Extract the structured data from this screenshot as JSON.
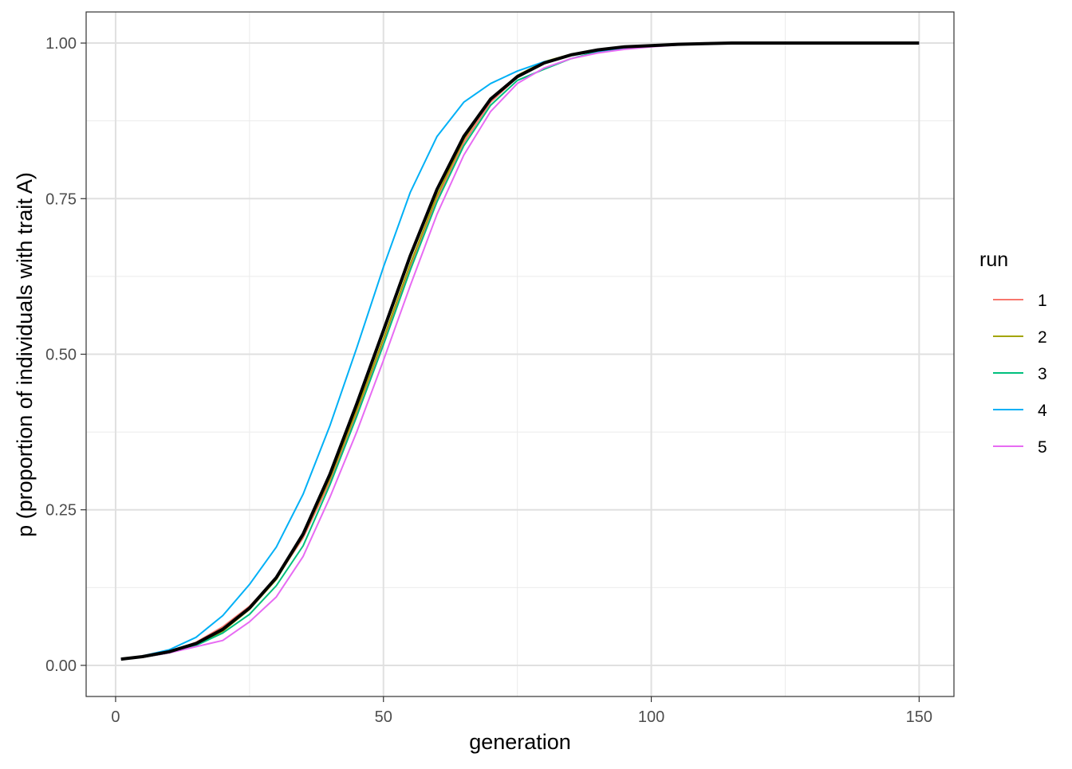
{
  "chart_data": {
    "type": "line",
    "title": "",
    "xlabel": "generation",
    "ylabel": "p (proportion of individuals with trait A)",
    "xlim": [
      -5.5,
      156.5
    ],
    "ylim": [
      -0.05,
      1.05
    ],
    "x_ticks": [
      0,
      50,
      100,
      150
    ],
    "x_tick_labels": [
      "0",
      "50",
      "100",
      "150"
    ],
    "y_ticks": [
      0,
      0.25,
      0.5,
      0.75,
      1.0
    ],
    "y_tick_labels": [
      "0.00",
      "0.25",
      "0.50",
      "0.75",
      "1.00"
    ],
    "grid": true,
    "legend": {
      "title": "run",
      "position": "right"
    },
    "x": [
      1,
      5,
      10,
      15,
      20,
      25,
      30,
      35,
      40,
      45,
      50,
      55,
      60,
      65,
      70,
      75,
      80,
      85,
      90,
      95,
      100,
      105,
      110,
      115,
      120,
      125,
      130,
      135,
      140,
      145,
      150
    ],
    "series": [
      {
        "name": "1",
        "color": "#F8766D",
        "width": 2,
        "values": [
          0.01,
          0.014,
          0.022,
          0.037,
          0.062,
          0.095,
          0.14,
          0.205,
          0.295,
          0.405,
          0.52,
          0.64,
          0.75,
          0.84,
          0.905,
          0.945,
          0.968,
          0.98,
          0.988,
          0.994,
          0.996,
          0.998,
          0.999,
          1.0,
          1.0,
          1.0,
          1.0,
          1.0,
          1.0,
          1.0,
          1.0
        ]
      },
      {
        "name": "2",
        "color": "#A3A500",
        "width": 2,
        "values": [
          0.01,
          0.013,
          0.02,
          0.033,
          0.055,
          0.09,
          0.138,
          0.208,
          0.3,
          0.41,
          0.525,
          0.645,
          0.755,
          0.845,
          0.91,
          0.948,
          0.97,
          0.982,
          0.989,
          0.994,
          0.996,
          0.998,
          0.999,
          1.0,
          1.0,
          1.0,
          1.0,
          1.0,
          1.0,
          1.0,
          1.0
        ]
      },
      {
        "name": "3",
        "color": "#00BF7D",
        "width": 2,
        "values": [
          0.01,
          0.013,
          0.02,
          0.032,
          0.052,
          0.082,
          0.128,
          0.192,
          0.29,
          0.4,
          0.515,
          0.635,
          0.745,
          0.835,
          0.9,
          0.94,
          0.958,
          0.975,
          0.986,
          0.993,
          0.996,
          0.998,
          0.999,
          1.0,
          1.0,
          1.0,
          1.0,
          1.0,
          1.0,
          1.0,
          1.0
        ]
      },
      {
        "name": "4",
        "color": "#00B0F6",
        "width": 2,
        "values": [
          0.01,
          0.015,
          0.025,
          0.045,
          0.08,
          0.13,
          0.19,
          0.275,
          0.385,
          0.51,
          0.64,
          0.76,
          0.85,
          0.905,
          0.935,
          0.955,
          0.97,
          0.98,
          0.987,
          0.992,
          0.996,
          0.998,
          0.999,
          1.0,
          1.0,
          1.0,
          1.0,
          1.0,
          1.0,
          1.0,
          1.0
        ]
      },
      {
        "name": "5",
        "color": "#E76BF3",
        "width": 2,
        "values": [
          0.01,
          0.013,
          0.02,
          0.03,
          0.04,
          0.07,
          0.11,
          0.175,
          0.27,
          0.375,
          0.49,
          0.61,
          0.725,
          0.82,
          0.89,
          0.935,
          0.96,
          0.975,
          0.984,
          0.99,
          0.994,
          0.997,
          0.999,
          1.0,
          1.0,
          1.0,
          1.0,
          1.0,
          1.0,
          1.0,
          1.0
        ]
      },
      {
        "color": "#000000",
        "width": 4,
        "values": [
          0.01,
          0.014,
          0.022,
          0.035,
          0.058,
          0.092,
          0.141,
          0.211,
          0.307,
          0.42,
          0.538,
          0.658,
          0.765,
          0.85,
          0.91,
          0.946,
          0.968,
          0.981,
          0.989,
          0.994,
          0.996,
          0.998,
          0.999,
          1.0,
          1.0,
          1.0,
          1.0,
          1.0,
          1.0,
          1.0,
          1.0
        ]
      }
    ]
  }
}
